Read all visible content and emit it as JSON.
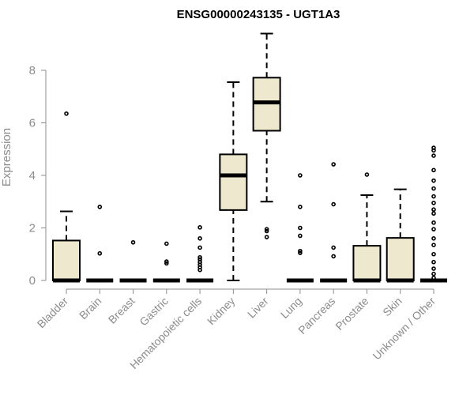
{
  "chart_data": {
    "type": "box",
    "title": "ENSG00000243135 - UGT1A3",
    "xlabel": "",
    "ylabel": "Expression",
    "ylim": [
      0,
      9.6
    ],
    "yticks": [
      0,
      2,
      4,
      6,
      8
    ],
    "grid": false,
    "box_fill": "#EDE8CE",
    "categories": [
      "Bladder",
      "Brain",
      "Breast",
      "Gastric",
      "Hematopoietic cells",
      "Kidney",
      "Liver",
      "Lung",
      "Pancreas",
      "Prostate",
      "Skin",
      "Unknown / Other"
    ],
    "boxes": [
      {
        "min": 0,
        "q1": 0,
        "median": 0,
        "q3": 1.52,
        "max": 2.63,
        "outliers": [
          6.35
        ]
      },
      {
        "min": 0,
        "q1": 0,
        "median": 0,
        "q3": 0,
        "max": 0,
        "outliers": [
          1.03,
          2.8
        ]
      },
      {
        "min": 0,
        "q1": 0,
        "median": 0,
        "q3": 0,
        "max": 0,
        "outliers": [
          1.45
        ]
      },
      {
        "min": 0,
        "q1": 0,
        "median": 0,
        "q3": 0,
        "max": 0,
        "outliers": [
          0.65,
          0.72,
          1.4
        ]
      },
      {
        "min": 0,
        "q1": 0,
        "median": 0,
        "q3": 0,
        "max": 0,
        "outliers": [
          0.4,
          0.5,
          0.6,
          0.7,
          0.8,
          0.88,
          1.25,
          1.6,
          2.02
        ]
      },
      {
        "min": 0,
        "q1": 2.68,
        "median": 4.0,
        "q3": 4.8,
        "max": 7.55,
        "outliers": []
      },
      {
        "min": 3.0,
        "q1": 5.7,
        "median": 6.78,
        "q3": 7.72,
        "max": 9.4,
        "outliers": [
          1.65,
          1.88,
          1.95
        ]
      },
      {
        "min": 0,
        "q1": 0,
        "median": 0,
        "q3": 0,
        "max": 0,
        "outliers": [
          1.05,
          1.12,
          1.7,
          2.0,
          2.8,
          4.0
        ]
      },
      {
        "min": 0,
        "q1": 0,
        "median": 0,
        "q3": 0,
        "max": 0,
        "outliers": [
          0.92,
          1.25,
          2.9,
          4.42
        ]
      },
      {
        "min": 0,
        "q1": 0,
        "median": 0,
        "q3": 1.32,
        "max": 3.25,
        "outliers": [
          4.03
        ]
      },
      {
        "min": 0,
        "q1": 0,
        "median": 0,
        "q3": 1.62,
        "max": 3.47,
        "outliers": []
      },
      {
        "min": 0,
        "q1": 0,
        "median": 0,
        "q3": 0,
        "max": 0,
        "outliers": [
          0.1,
          0.25,
          0.45,
          0.7,
          1.0,
          1.35,
          1.6,
          1.95,
          2.2,
          2.55,
          2.7,
          2.95,
          3.2,
          3.5,
          3.8,
          4.2,
          4.75,
          4.95,
          5.05
        ]
      }
    ]
  }
}
